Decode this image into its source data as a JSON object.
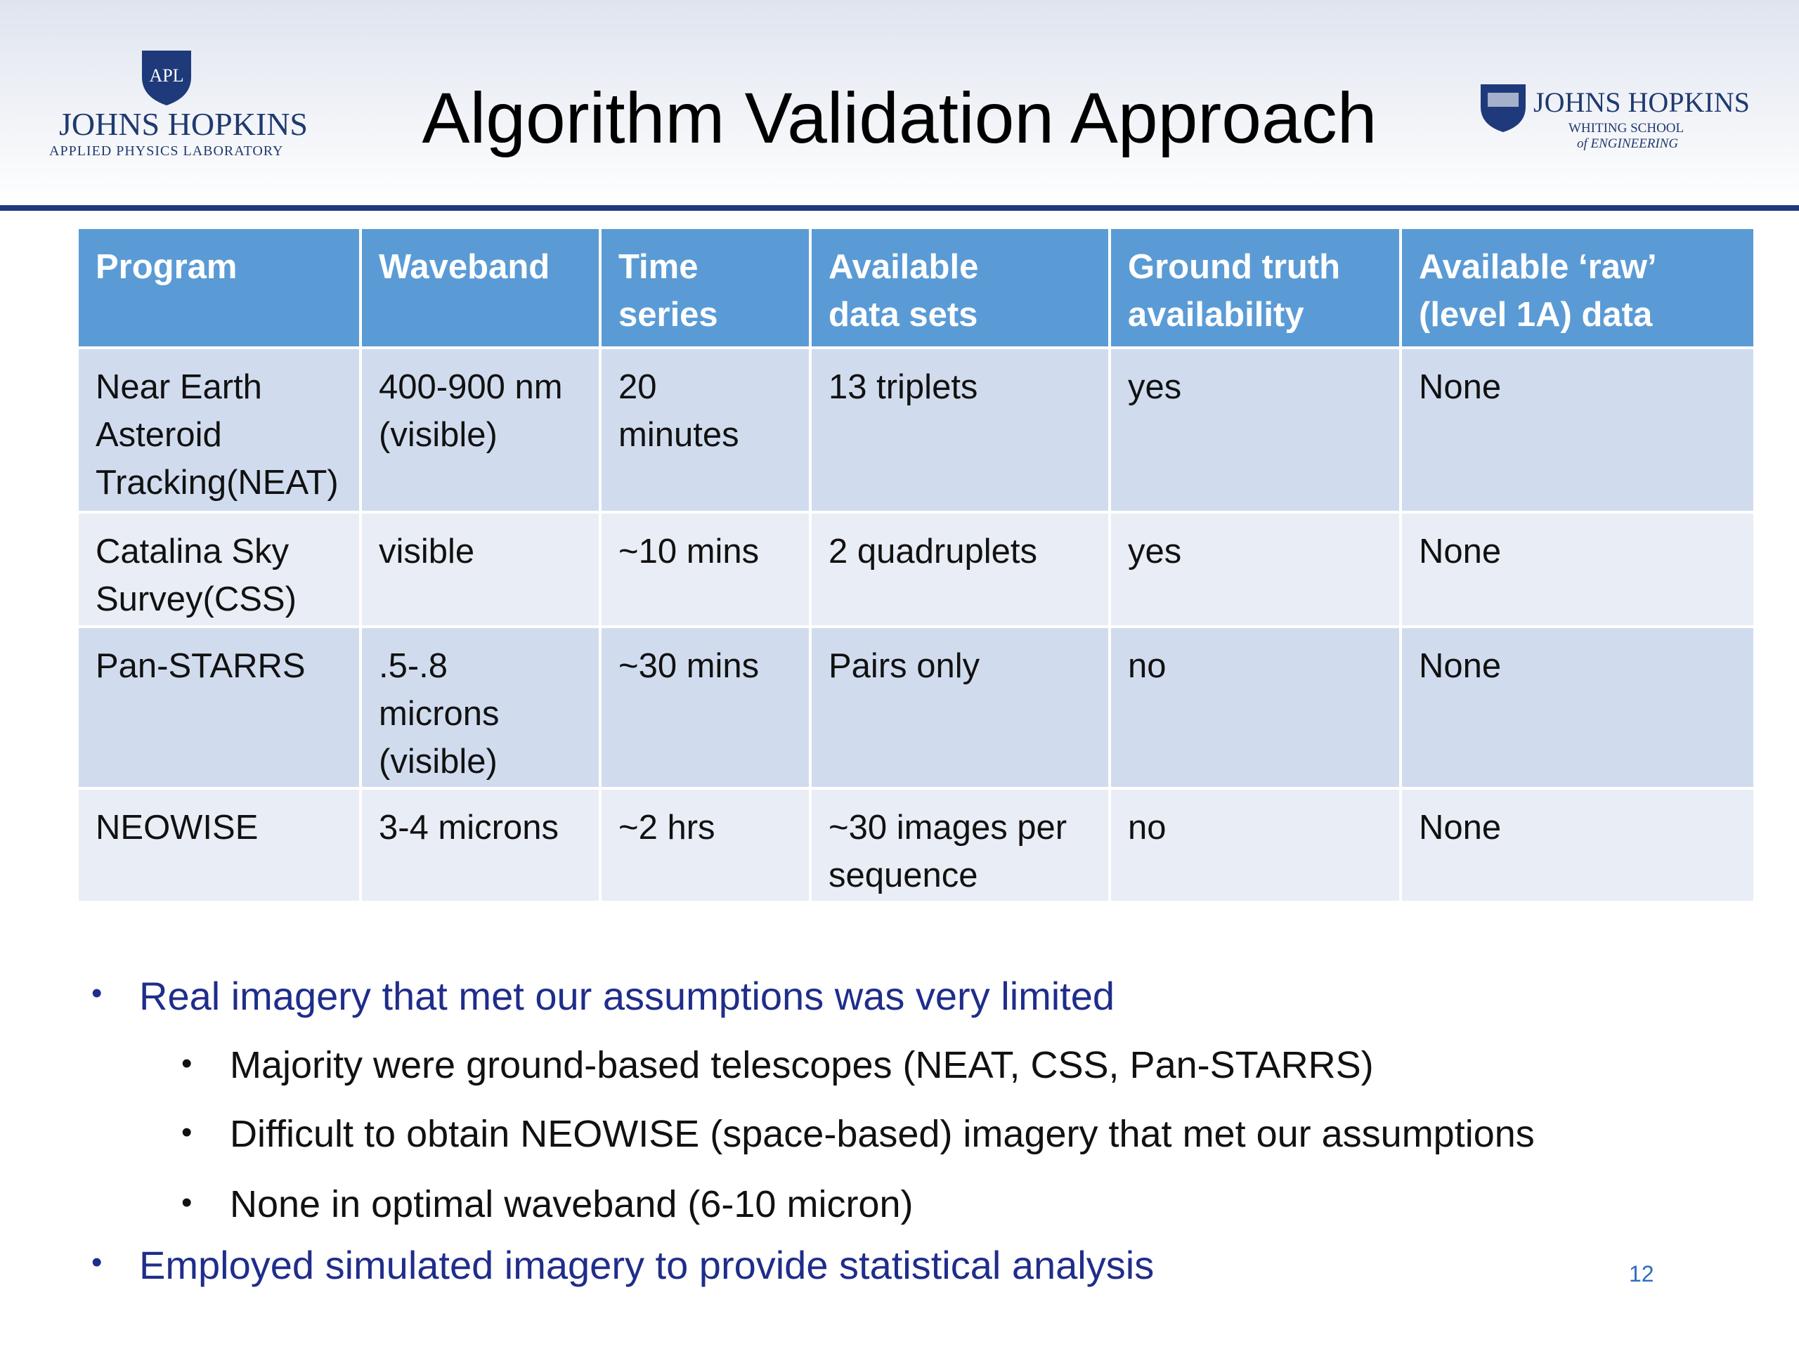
{
  "header": {
    "title": "Algorithm Validation Approach",
    "left_logo": {
      "emblem": "APL",
      "name": "JOHNS HOPKINS",
      "subtitle": "APPLIED PHYSICS LABORATORY"
    },
    "right_logo": {
      "name": "JOHNS HOPKINS",
      "line1": "WHITING SCHOOL",
      "line2": "of ENGINEERING"
    }
  },
  "table": {
    "header": [
      [
        "Program"
      ],
      [
        "Waveband"
      ],
      [
        "Time",
        "series"
      ],
      [
        "Available",
        "data sets"
      ],
      [
        "Ground truth",
        "availability"
      ],
      [
        "Available ‘raw’",
        "(level 1A) data"
      ]
    ],
    "rows": [
      [
        [
          "Near Earth",
          "Asteroid",
          "Tracking(NEAT)"
        ],
        [
          "400-900 nm",
          "(visible)"
        ],
        [
          "20",
          "minutes"
        ],
        [
          "13 triplets"
        ],
        [
          "yes"
        ],
        [
          "None"
        ]
      ],
      [
        [
          "Catalina Sky",
          "Survey(CSS)"
        ],
        [
          "visible"
        ],
        [
          "~10 mins"
        ],
        [
          "2 quadruplets"
        ],
        [
          "yes"
        ],
        [
          "None"
        ]
      ],
      [
        [
          "Pan-STARRS"
        ],
        [
          ".5-.8",
          "microns",
          "(visible)"
        ],
        [
          "~30 mins"
        ],
        [
          "Pairs only"
        ],
        [
          "no"
        ],
        [
          "None"
        ]
      ],
      [
        [
          "NEOWISE"
        ],
        [
          "3-4 microns"
        ],
        [
          "~2 hrs"
        ],
        [
          "~30 images per",
          "sequence"
        ],
        [
          "no"
        ],
        [
          "None"
        ]
      ]
    ]
  },
  "bullets": [
    {
      "level": 1,
      "text": "Real imagery that met our assumptions was very limited"
    },
    {
      "level": 2,
      "text": "Majority were ground-based telescopes (NEAT, CSS, Pan-STARRS)"
    },
    {
      "level": 2,
      "text": "Difficult to obtain NEOWISE (space-based) imagery that met our assumptions"
    },
    {
      "level": 2,
      "text": "None in optimal waveband (6-10 micron)"
    },
    {
      "level": 1,
      "text": "Employed simulated imagery to provide statistical analysis"
    }
  ],
  "page_number": "12"
}
